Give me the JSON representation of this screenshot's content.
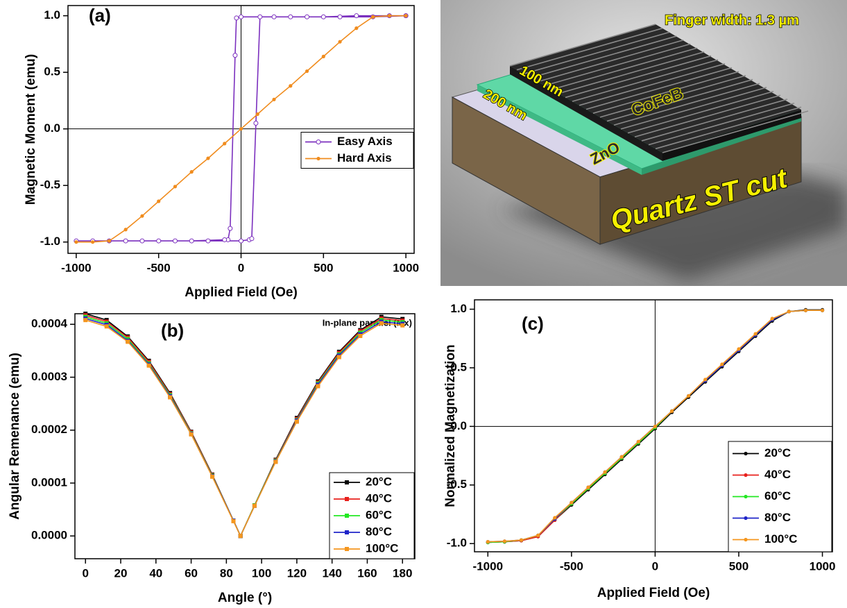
{
  "chart_data": [
    {
      "type": "line",
      "annotations": [
        "(a)"
      ],
      "x_label": "Applied Field (Oe)",
      "y_label": "Magnetic Moment (emu)",
      "xlim": [
        -1050,
        1050
      ],
      "ylim": [
        -1.1,
        1.09
      ],
      "xticks": [
        -1000,
        -500,
        0,
        500,
        1000
      ],
      "yticks": [
        {
          "value": -1.0,
          "label": "-1.0"
        },
        -0.5,
        {
          "value": 0.0,
          "label": "0.0"
        },
        0.5,
        {
          "value": 1.0,
          "label": "1.0"
        }
      ],
      "zero_lines": true,
      "legend": "center right",
      "series": [
        {
          "name": "Easy Axis",
          "color": "#7b2fbe",
          "marker": "open-circle",
          "x": [
            1000,
            800,
            600,
            400,
            200,
            0,
            -28,
            -36,
            -66,
            -79,
            -100,
            -300,
            -500,
            -700,
            -900,
            -1000,
            -800,
            -600,
            -400,
            -200,
            0,
            50,
            65,
            90,
            115,
            300,
            500,
            700,
            900,
            1000
          ],
          "values": [
            1,
            0.99,
            0.99,
            0.99,
            0.99,
            0.99,
            0.98,
            0.65,
            -0.88,
            -0.98,
            -0.98,
            -0.99,
            -0.99,
            -0.99,
            -0.99,
            -0.99,
            -0.99,
            -0.99,
            -0.99,
            -0.99,
            -0.99,
            -0.98,
            -0.97,
            0.05,
            0.99,
            0.99,
            0.99,
            1,
            1,
            1
          ]
        },
        {
          "name": "Hard Axis",
          "color": "#f08c1e",
          "marker": "circle",
          "x": [
            -1000,
            -900,
            -800,
            -700,
            -600,
            -500,
            -400,
            -300,
            -200,
            -100,
            0,
            100,
            200,
            300,
            400,
            500,
            600,
            700,
            800,
            900,
            1000
          ],
          "values": [
            -1,
            -1,
            -0.99,
            -0.89,
            -0.77,
            -0.64,
            -0.51,
            -0.38,
            -0.26,
            -0.13,
            0,
            0.13,
            0.26,
            0.38,
            0.51,
            0.64,
            0.77,
            0.89,
            0.99,
            1,
            1
          ]
        }
      ]
    },
    {
      "type": "line",
      "annotations": [
        "(b)",
        "In-plane parallel (Mx)"
      ],
      "x_label": "Angle (°)",
      "y_label": "Angular Remenance (emu)",
      "xlim": [
        -6,
        187
      ],
      "ylim": [
        -4.3e-05,
        0.00042
      ],
      "xticks": [
        0,
        20,
        40,
        60,
        80,
        100,
        120,
        140,
        160,
        180
      ],
      "yticks": [
        {
          "value": 0,
          "label": "0.0000"
        },
        0.0001,
        0.0002,
        0.0003,
        0.0004
      ],
      "zero_lines": false,
      "legend": "lower right",
      "series": [
        {
          "name": "20°C",
          "color": "#000000",
          "marker": "square",
          "x": [
            0,
            12,
            24,
            36,
            48,
            60,
            72,
            84,
            88,
            96,
            108,
            120,
            132,
            144,
            156,
            168,
            180
          ],
          "values": [
            0.00042,
            0.000408,
            0.000377,
            0.000331,
            0.00027,
            0.000197,
            0.000116,
            2.9e-05,
            0,
            5.8e-05,
            0.000144,
            0.000223,
            0.000292,
            0.000348,
            0.000389,
            0.000414,
            0.00041
          ]
        },
        {
          "name": "40°C",
          "color": "#e8201c",
          "marker": "square",
          "x": [
            0,
            12,
            24,
            36,
            48,
            60,
            72,
            84,
            88,
            96,
            108,
            120,
            132,
            144,
            156,
            168,
            180
          ],
          "values": [
            0.000417,
            0.000405,
            0.000375,
            0.000329,
            0.000268,
            0.000196,
            0.000115,
            2.9e-05,
            0,
            5.8e-05,
            0.000143,
            0.000221,
            0.00029,
            0.000346,
            0.000387,
            0.000411,
            0.000407
          ]
        },
        {
          "name": "60°C",
          "color": "#22e822",
          "marker": "square",
          "x": [
            0,
            12,
            24,
            36,
            48,
            60,
            72,
            84,
            88,
            96,
            108,
            120,
            132,
            144,
            156,
            168,
            180
          ],
          "values": [
            0.000414,
            0.000402,
            0.000372,
            0.000326,
            0.000266,
            0.000194,
            0.000114,
            2.9e-05,
            0,
            5.8e-05,
            0.000142,
            0.000219,
            0.000288,
            0.000343,
            0.000384,
            0.000408,
            0.000404
          ]
        },
        {
          "name": "80°C",
          "color": "#1f24c8",
          "marker": "square",
          "x": [
            0,
            12,
            24,
            36,
            48,
            60,
            72,
            84,
            88,
            96,
            108,
            120,
            132,
            144,
            156,
            168,
            180
          ],
          "values": [
            0.000411,
            0.000399,
            0.000369,
            0.000324,
            0.000264,
            0.000193,
            0.000113,
            2.9e-05,
            0,
            5.7e-05,
            0.000141,
            0.000218,
            0.000286,
            0.000341,
            0.000381,
            0.000405,
            0.000401
          ]
        },
        {
          "name": "100°C",
          "color": "#f5961e",
          "marker": "square",
          "x": [
            0,
            12,
            24,
            36,
            48,
            60,
            72,
            84,
            88,
            96,
            108,
            120,
            132,
            144,
            156,
            168,
            180
          ],
          "values": [
            0.000408,
            0.000396,
            0.000367,
            0.000322,
            0.000262,
            0.000192,
            0.000112,
            2.8e-05,
            0,
            5.7e-05,
            0.00014,
            0.000216,
            0.000283,
            0.000338,
            0.000378,
            0.000402,
            0.000398
          ]
        }
      ]
    },
    {
      "type": "line",
      "annotations": [
        "(c)"
      ],
      "x_label": "Applied Field (Oe)",
      "y_label": "Normalized Magnetization",
      "xlim": [
        -1080,
        1060
      ],
      "ylim": [
        -1.07,
        1.08
      ],
      "xticks": [
        -1000,
        -500,
        0,
        500,
        1000
      ],
      "yticks": [
        {
          "value": -1.0,
          "label": "-1.0"
        },
        -0.5,
        {
          "value": 0.0,
          "label": "0.0"
        },
        0.5,
        {
          "value": 1.0,
          "label": "1.0"
        }
      ],
      "zero_lines": true,
      "legend": "lower right",
      "series": [
        {
          "name": "20°C",
          "color": "#000000",
          "marker": "circle",
          "x": [
            -1000,
            -900,
            -800,
            -700,
            -600,
            -500,
            -400,
            -300,
            -200,
            -100,
            0,
            100,
            200,
            300,
            400,
            500,
            600,
            700,
            800,
            900,
            1000
          ],
          "values": [
            -0.99,
            -0.985,
            -0.975,
            -0.94,
            -0.8,
            -0.67,
            -0.54,
            -0.41,
            -0.28,
            -0.15,
            -0.02,
            0.12,
            0.25,
            0.38,
            0.51,
            0.64,
            0.77,
            0.9,
            0.98,
            0.995,
            0.995
          ]
        },
        {
          "name": "40°C",
          "color": "#e8201c",
          "marker": "circle",
          "x": [
            -1000,
            -900,
            -800,
            -700,
            -600,
            -500,
            -400,
            -300,
            -200,
            -100,
            0,
            100,
            200,
            300,
            400,
            500,
            600,
            700,
            800,
            900,
            1000
          ],
          "values": [
            -0.99,
            -0.985,
            -0.975,
            -0.94,
            -0.8,
            -0.66,
            -0.53,
            -0.4,
            -0.27,
            -0.14,
            -0.01,
            0.13,
            0.26,
            0.39,
            0.52,
            0.65,
            0.78,
            0.91,
            0.98,
            0.99,
            0.99
          ]
        },
        {
          "name": "60°C",
          "color": "#22e822",
          "marker": "circle",
          "x": [
            -1000,
            -900,
            -800,
            -700,
            -600,
            -500,
            -400,
            -300,
            -200,
            -100,
            0,
            100,
            200,
            300,
            400,
            500,
            600,
            700,
            800,
            900,
            1000
          ],
          "values": [
            -0.99,
            -0.985,
            -0.97,
            -0.93,
            -0.79,
            -0.66,
            -0.53,
            -0.4,
            -0.27,
            -0.14,
            -0.01,
            0.13,
            0.26,
            0.39,
            0.52,
            0.65,
            0.78,
            0.91,
            0.98,
            0.99,
            0.99
          ]
        },
        {
          "name": "80°C",
          "color": "#1f24c8",
          "marker": "circle",
          "x": [
            -1000,
            -900,
            -800,
            -700,
            -600,
            -500,
            -400,
            -300,
            -200,
            -100,
            0,
            100,
            200,
            300,
            400,
            500,
            600,
            700,
            800,
            900,
            1000
          ],
          "values": [
            -0.985,
            -0.98,
            -0.97,
            -0.93,
            -0.79,
            -0.65,
            -0.52,
            -0.39,
            -0.26,
            -0.13,
            0,
            0.13,
            0.26,
            0.39,
            0.52,
            0.65,
            0.78,
            0.91,
            0.98,
            0.99,
            0.99
          ]
        },
        {
          "name": "100°C",
          "color": "#f5961e",
          "marker": "circle",
          "x": [
            -1000,
            -900,
            -800,
            -700,
            -600,
            -500,
            -400,
            -300,
            -200,
            -100,
            0,
            100,
            200,
            300,
            400,
            500,
            600,
            700,
            800,
            900,
            1000
          ],
          "values": [
            -0.985,
            -0.98,
            -0.97,
            -0.93,
            -0.78,
            -0.65,
            -0.52,
            -0.39,
            -0.26,
            -0.13,
            0,
            0.13,
            0.26,
            0.4,
            0.53,
            0.66,
            0.79,
            0.92,
            0.98,
            0.99,
            0.99
          ]
        }
      ]
    }
  ],
  "diagram": {
    "finger_width": "Finger width: 1.3 µm",
    "top_thickness": "100 nm",
    "middle_thickness": "200 nm",
    "top_layer": "CoFeB",
    "middle_layer": "ZnO",
    "substrate": "Quartz ST cut"
  }
}
